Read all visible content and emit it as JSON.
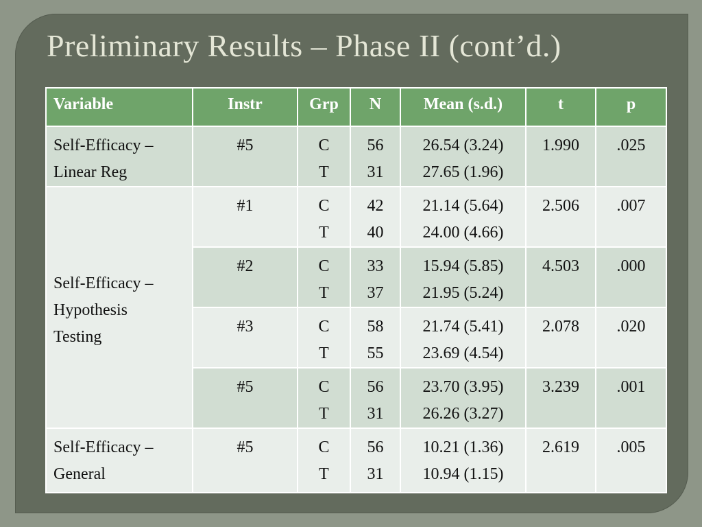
{
  "title": "Preliminary Results – Phase II (cont’d.)",
  "columns": [
    "Variable",
    "Instr",
    "Grp",
    "N",
    "Mean (s.d.)",
    "t",
    "p"
  ],
  "rows": [
    {
      "variable": [
        "Self-Efficacy –",
        "Linear Reg"
      ],
      "instr": "#5",
      "grp": [
        "C",
        "T"
      ],
      "n": [
        "56",
        "31"
      ],
      "mean": [
        "26.54 (3.24)",
        "27.65 (1.96)"
      ],
      "t": "1.990",
      "p": ".025"
    },
    {
      "variable": [
        "Self-Efficacy –",
        "Hypothesis",
        "Testing"
      ],
      "instr": "#1",
      "grp": [
        "C",
        "T"
      ],
      "n": [
        "42",
        "40"
      ],
      "mean": [
        "21.14 (5.64)",
        "24.00 (4.66)"
      ],
      "t": "2.506",
      "p": ".007"
    },
    {
      "instr": "#2",
      "grp": [
        "C",
        "T"
      ],
      "n": [
        "33",
        "37"
      ],
      "mean": [
        "15.94 (5.85)",
        "21.95 (5.24)"
      ],
      "t": "4.503",
      "p": ".000"
    },
    {
      "instr": "#3",
      "grp": [
        "C",
        "T"
      ],
      "n": [
        "58",
        "55"
      ],
      "mean": [
        "21.74 (5.41)",
        "23.69 (4.54)"
      ],
      "t": "2.078",
      "p": ".020"
    },
    {
      "instr": "#5",
      "grp": [
        "C",
        "T"
      ],
      "n": [
        "56",
        "31"
      ],
      "mean": [
        "23.70 (3.95)",
        "26.26 (3.27)"
      ],
      "t": "3.239",
      "p": ".001"
    },
    {
      "variable": [
        "Self-Efficacy –",
        "General"
      ],
      "instr": "#5",
      "grp": [
        "C",
        "T"
      ],
      "n": [
        "56",
        "31"
      ],
      "mean": [
        "10.21 (1.36)",
        "10.94 (1.15)"
      ],
      "t": "2.619",
      "p": ".005"
    }
  ],
  "colors": {
    "header_bg": "#6fa46a",
    "row_dark": "#d1ddd2",
    "row_light": "#e9eeea",
    "slide_bg": "#636b5d",
    "title_text": "#e4e6d6"
  }
}
